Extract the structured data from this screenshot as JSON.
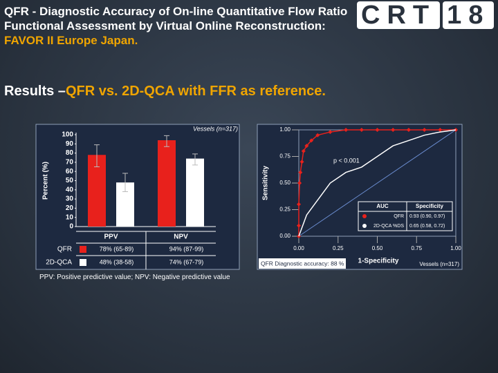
{
  "slide": {
    "title": "QFR - Diagnostic Accuracy of On-line Quantitative Flow Ratio Functional Assessment by Virtual Online Reconstruction: ",
    "title_highlight": "FAVOR II Europe Japan.",
    "subtitle": "Results –",
    "subtitle_highlight": "QFR vs. 2D-QCA with FFR as reference.",
    "logo": [
      "CRT",
      "18"
    ],
    "footnote": "PPV: Positive predictive value; NPV: Negative predictive value"
  },
  "chart_data": [
    {
      "type": "bar",
      "ylabel": "Percent (%)",
      "annotation": "Vessels (n=317)",
      "categories": [
        "PPV",
        "NPV"
      ],
      "series": [
        {
          "name": "QFR",
          "color": "#e8211c",
          "values": [
            78,
            94
          ],
          "ci": [
            [
              65,
              89
            ],
            [
              87,
              99
            ]
          ],
          "value_labels": [
            "78% (65-89)",
            "94% (87-99)"
          ]
        },
        {
          "name": "2D-QCA",
          "color": "#ffffff",
          "values": [
            48,
            74
          ],
          "ci": [
            [
              38,
              58
            ],
            [
              67,
              79
            ]
          ],
          "value_labels": [
            "48% (38-58)",
            "74% (67-79)"
          ]
        }
      ],
      "ylim": [
        0,
        100
      ],
      "yticks": [
        0,
        10,
        20,
        30,
        40,
        50,
        60,
        70,
        80,
        90,
        100
      ]
    },
    {
      "type": "line",
      "xlabel": "1-Specificity",
      "ylabel": "Sensitivity",
      "annotation": "p < 0.001",
      "note": "Vessels (n=317)",
      "caption": "QFR Diagnostic accuracy: 88 %",
      "legend_columns": [
        "AUC",
        "Specificity"
      ],
      "series": [
        {
          "name": "QFR",
          "color": "#e8211c",
          "markers": true,
          "auc_label": "0.93 (0.90, 0.97)",
          "x": [
            0,
            0,
            0,
            0.005,
            0.01,
            0.02,
            0.03,
            0.05,
            0.08,
            0.12,
            0.2,
            0.3,
            0.4,
            0.5,
            0.6,
            0.7,
            0.8,
            0.9,
            1.0
          ],
          "values": [
            0,
            0.1,
            0.3,
            0.5,
            0.6,
            0.7,
            0.8,
            0.85,
            0.9,
            0.95,
            0.98,
            1.0,
            1.0,
            1.0,
            1.0,
            1.0,
            1.0,
            1.0,
            1.0
          ]
        },
        {
          "name": "2D-QCA %DS",
          "color": "#ffffff",
          "markers": false,
          "auc_label": "0.65 (0.58, 0.72)",
          "x": [
            0,
            0.05,
            0.1,
            0.15,
            0.2,
            0.3,
            0.4,
            0.5,
            0.6,
            0.7,
            0.8,
            0.9,
            1.0
          ],
          "values": [
            0,
            0.2,
            0.3,
            0.4,
            0.5,
            0.6,
            0.65,
            0.75,
            0.85,
            0.9,
            0.95,
            0.98,
            1.0
          ]
        }
      ],
      "xlim": [
        0,
        1
      ],
      "ylim": [
        0,
        1
      ],
      "xticks": [
        {
          "value": 0,
          "label": "0.00"
        },
        {
          "value": 0.25,
          "label": "0.25"
        },
        {
          "value": 0.5,
          "label": "0.50"
        },
        {
          "value": 0.75,
          "label": "0.75"
        },
        {
          "value": 1,
          "label": "1.00"
        }
      ],
      "yticks": [
        {
          "value": 0,
          "label": "0.00"
        },
        {
          "value": 0.25,
          "label": "0.25"
        },
        {
          "value": 0.5,
          "label": "0.50"
        },
        {
          "value": 0.75,
          "label": "0.75"
        },
        {
          "value": 1,
          "label": "1.00"
        }
      ]
    }
  ]
}
